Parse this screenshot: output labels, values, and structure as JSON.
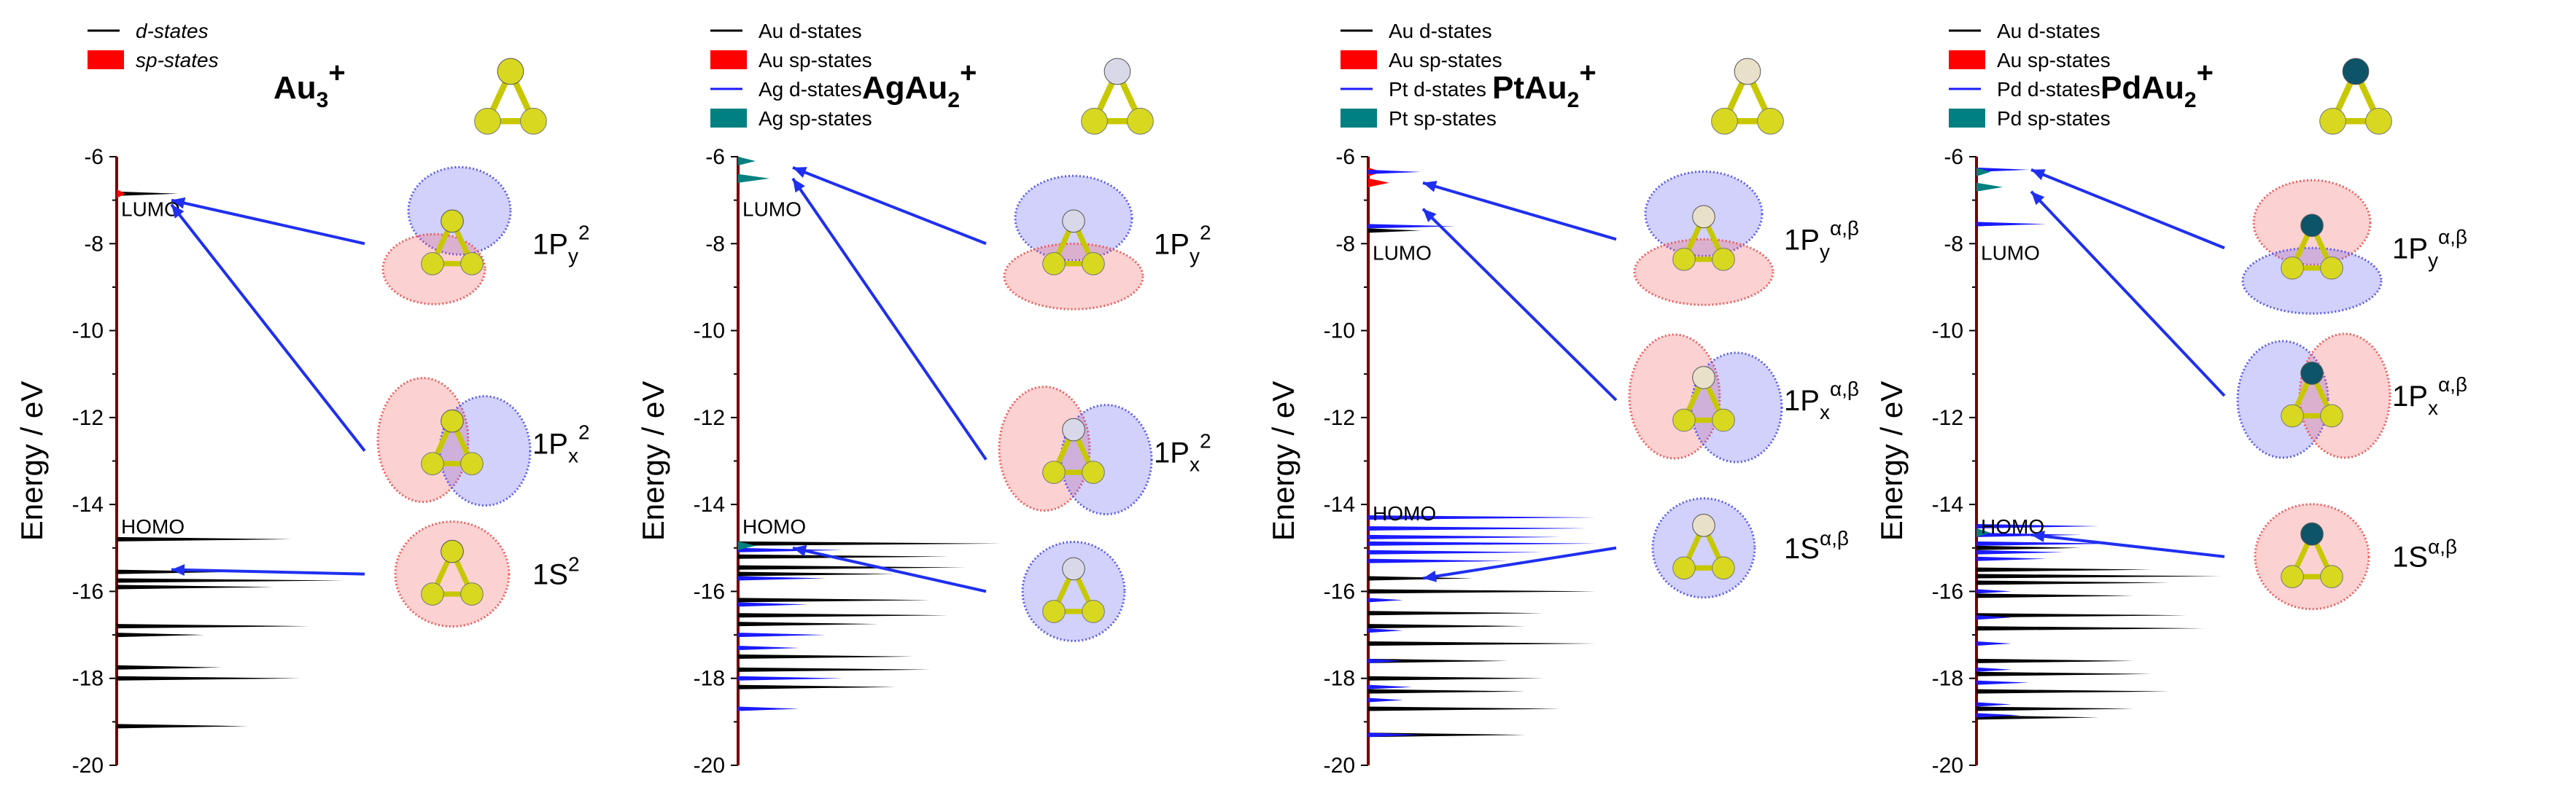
{
  "colors": {
    "d_states": "#000000",
    "au_sp": "#ff0000",
    "second_d": "#1a1aff",
    "second_sp": "#008080",
    "axis": "#7a0000",
    "arrow": "#1f2ff0",
    "lobe_red": "#f05a5a",
    "lobe_blue": "#5a5af0",
    "au_atom": "#d8d820",
    "ag_atom": "#d8d8e8",
    "pt_atom": "#e8e0c8",
    "pd_atom": "#0e5468"
  },
  "chart_data": [
    {
      "type": "bar",
      "panel": "Au3+",
      "title": "Au",
      "title_sub": "3",
      "title_sup": "+",
      "ylabel": "Energy / eV",
      "ylim": [
        -20,
        -6
      ],
      "yticks": [
        "-6",
        "-8",
        "-10",
        "-12",
        "-14",
        "-16",
        "-18",
        "-20"
      ],
      "legend": [
        {
          "label": "d-states",
          "style": "line",
          "color": "#000000",
          "italic": true
        },
        {
          "label": "sp-states",
          "style": "box",
          "color": "#ff0000",
          "italic": true
        }
      ],
      "level_labels": [
        {
          "text": "LUMO",
          "y": -7.0
        },
        {
          "text": "HOMO",
          "y": -14.3
        }
      ],
      "series": [
        {
          "name": "d-states",
          "color": "#000000",
          "peaks": [
            [
              -6.85,
              0.35
            ],
            [
              -14.8,
              1.0
            ],
            [
              -15.55,
              0.7
            ],
            [
              -15.75,
              1.3
            ],
            [
              -15.9,
              0.9
            ],
            [
              -16.8,
              1.1
            ],
            [
              -17.0,
              0.5
            ],
            [
              -17.75,
              0.6
            ],
            [
              -18.0,
              1.05
            ],
            [
              -19.1,
              0.75
            ]
          ]
        },
        {
          "name": "sp-states",
          "color": "#ff0000",
          "peaks": [
            [
              -6.85,
              0.05
            ]
          ]
        }
      ],
      "orbitals": [
        {
          "label": "1P",
          "sub": "y",
          "sup": "2",
          "y": -8.0,
          "lobes": "red-lower-blue-upper"
        },
        {
          "label": "1P",
          "sub": "x",
          "sup": "2",
          "y": -12.6,
          "lobes": "red-left-blue-right"
        },
        {
          "label": "1S",
          "sub": "",
          "sup": "2",
          "y": -15.6,
          "lobes": "red"
        }
      ],
      "arrows": [
        {
          "from_orbital": 0,
          "to_y": -7.0
        },
        {
          "from_orbital": 1,
          "to_y": -7.1
        },
        {
          "from_orbital": 2,
          "to_y": -15.5
        }
      ],
      "cluster_top_atom": "au"
    },
    {
      "type": "bar",
      "panel": "AgAu2+",
      "title": "AgAu",
      "title_sub": "2",
      "title_sup": "+",
      "ylabel": "Energy / eV",
      "ylim": [
        -20,
        -6
      ],
      "yticks": [
        "-6",
        "-8",
        "-10",
        "-12",
        "-14",
        "-16",
        "-18",
        "-20"
      ],
      "legend": [
        {
          "label": "Au d-states",
          "style": "line",
          "color": "#000000",
          "italic": false
        },
        {
          "label": "Au sp-states",
          "style": "box",
          "color": "#ff0000",
          "italic": false
        },
        {
          "label": "Ag d-states",
          "style": "line",
          "color": "#1a1aff",
          "italic": false
        },
        {
          "label": "Ag sp-states",
          "style": "box",
          "color": "#008080",
          "italic": false
        }
      ],
      "level_labels": [
        {
          "text": "LUMO",
          "y": -7.0
        },
        {
          "text": "HOMO",
          "y": -14.3
        }
      ],
      "series": [
        {
          "name": "Au d-states",
          "color": "#000000",
          "peaks": [
            [
              -14.9,
              1.5
            ],
            [
              -15.2,
              1.2
            ],
            [
              -15.45,
              1.3
            ],
            [
              -15.6,
              0.9
            ],
            [
              -16.2,
              1.1
            ],
            [
              -16.55,
              1.2
            ],
            [
              -16.75,
              0.8
            ],
            [
              -17.5,
              1.0
            ],
            [
              -17.8,
              1.1
            ],
            [
              -18.2,
              0.9
            ]
          ]
        },
        {
          "name": "Au sp-states",
          "color": "#ff0000",
          "peaks": []
        },
        {
          "name": "Ag d-states",
          "color": "#1a1aff",
          "peaks": [
            [
              -15.05,
              0.6
            ],
            [
              -15.7,
              0.5
            ],
            [
              -16.3,
              0.4
            ],
            [
              -17.0,
              0.5
            ],
            [
              -17.3,
              0.35
            ],
            [
              -18.0,
              0.6
            ],
            [
              -18.7,
              0.35
            ]
          ]
        },
        {
          "name": "Ag sp-states",
          "color": "#008080",
          "peaks": [
            [
              -6.1,
              0.1
            ],
            [
              -6.5,
              0.18
            ],
            [
              -14.95,
              0.1
            ]
          ]
        }
      ],
      "orbitals": [
        {
          "label": "1P",
          "sub": "y",
          "sup": "2",
          "y": -8.0,
          "lobes": "blue-upper-red-lower"
        },
        {
          "label": "1P",
          "sub": "x",
          "sup": "2",
          "y": -12.8,
          "lobes": "red-left-blue-right"
        },
        {
          "label": "",
          "sub": "",
          "sup": "",
          "y": -16.0,
          "lobes": "blue"
        }
      ],
      "arrows": [
        {
          "from_orbital": 0,
          "to_y": -6.25
        },
        {
          "from_orbital": 1,
          "to_y": -6.5
        },
        {
          "from_orbital": 2,
          "to_y": -15.0
        }
      ],
      "cluster_top_atom": "ag"
    },
    {
      "type": "bar",
      "panel": "PtAu2+",
      "title": "PtAu",
      "title_sub": "2",
      "title_sup": "+",
      "ylabel": "Energy / eV",
      "ylim": [
        -20,
        -6
      ],
      "yticks": [
        "-6",
        "-8",
        "-10",
        "-12",
        "-14",
        "-16",
        "-18",
        "-20"
      ],
      "legend": [
        {
          "label": "Au d-states",
          "style": "line",
          "color": "#000000",
          "italic": false
        },
        {
          "label": "Au sp-states",
          "style": "box",
          "color": "#ff0000",
          "italic": false
        },
        {
          "label": "Pt d-states",
          "style": "line",
          "color": "#1a1aff",
          "italic": false
        },
        {
          "label": "Pt sp-states",
          "style": "box",
          "color": "#008080",
          "italic": false
        }
      ],
      "level_labels": [
        {
          "text": "LUMO",
          "y": -8.0
        },
        {
          "text": "HOMO",
          "y": -14.0
        }
      ],
      "series": [
        {
          "name": "Au d-states",
          "color": "#000000",
          "peaks": [
            [
              -7.7,
              0.3
            ],
            [
              -15.7,
              0.6
            ],
            [
              -16.0,
              1.3
            ],
            [
              -16.5,
              1.0
            ],
            [
              -16.8,
              0.9
            ],
            [
              -17.2,
              1.3
            ],
            [
              -17.6,
              0.8
            ],
            [
              -18.0,
              1.0
            ],
            [
              -18.3,
              0.9
            ],
            [
              -18.7,
              1.1
            ],
            [
              -19.3,
              0.9
            ]
          ]
        },
        {
          "name": "Au sp-states",
          "color": "#ff0000",
          "peaks": [
            [
              -6.35,
              0.08
            ],
            [
              -6.6,
              0.12
            ]
          ]
        },
        {
          "name": "Pt d-states",
          "color": "#1a1aff",
          "peaks": [
            [
              -6.35,
              0.3
            ],
            [
              -7.6,
              0.5
            ],
            [
              -14.3,
              1.3
            ],
            [
              -14.55,
              1.25
            ],
            [
              -14.75,
              1.1
            ],
            [
              -14.9,
              1.3
            ],
            [
              -15.1,
              1.0
            ],
            [
              -15.3,
              0.8
            ],
            [
              -16.2,
              0.2
            ],
            [
              -16.9,
              0.2
            ],
            [
              -17.6,
              0.2
            ],
            [
              -18.2,
              0.25
            ],
            [
              -18.5,
              0.2
            ],
            [
              -19.3,
              0.3
            ]
          ]
        },
        {
          "name": "Pt sp-states",
          "color": "#008080",
          "peaks": []
        }
      ],
      "orbitals": [
        {
          "label": "1P",
          "sub": "y",
          "sup": "α,β",
          "y": -7.9,
          "lobes": "blue-upper-red-lower"
        },
        {
          "label": "1P",
          "sub": "x",
          "sup": "α,β",
          "y": -11.6,
          "lobes": "red-left-blue-right"
        },
        {
          "label": "1S",
          "sub": "",
          "sup": "α,β",
          "y": -15.0,
          "lobes": "blue"
        }
      ],
      "arrows": [
        {
          "from_orbital": 0,
          "to_y": -6.6
        },
        {
          "from_orbital": 1,
          "to_y": -7.2
        },
        {
          "from_orbital": 2,
          "to_y": -15.7
        }
      ],
      "cluster_top_atom": "pt"
    },
    {
      "type": "bar",
      "panel": "PdAu2+",
      "title": "PdAu",
      "title_sub": "2",
      "title_sup": "+",
      "ylabel": "Energy / eV",
      "ylim": [
        -20,
        -6
      ],
      "yticks": [
        "-6",
        "-8",
        "-10",
        "-12",
        "-14",
        "-16",
        "-18",
        "-20"
      ],
      "legend": [
        {
          "label": "Au d-states",
          "style": "line",
          "color": "#000000",
          "italic": false
        },
        {
          "label": "Au sp-states",
          "style": "box",
          "color": "#ff0000",
          "italic": false
        },
        {
          "label": "Pd d-states",
          "style": "line",
          "color": "#1a1aff",
          "italic": false
        },
        {
          "label": "Pd sp-states",
          "style": "box",
          "color": "#008080",
          "italic": false
        }
      ],
      "level_labels": [
        {
          "text": "LUMO",
          "y": -8.0
        },
        {
          "text": "HOMO",
          "y": -14.3
        }
      ],
      "series": [
        {
          "name": "Au d-states",
          "color": "#000000",
          "peaks": [
            [
              -7.55,
              0.3
            ],
            [
              -15.0,
              0.6
            ],
            [
              -15.5,
              1.0
            ],
            [
              -15.65,
              1.4
            ],
            [
              -15.8,
              1.1
            ],
            [
              -16.1,
              0.9
            ],
            [
              -16.55,
              1.2
            ],
            [
              -16.85,
              1.3
            ],
            [
              -17.6,
              0.9
            ],
            [
              -17.9,
              1.0
            ],
            [
              -18.3,
              1.1
            ],
            [
              -18.7,
              0.9
            ],
            [
              -18.9,
              0.7
            ]
          ]
        },
        {
          "name": "Au sp-states",
          "color": "#ff0000",
          "peaks": []
        },
        {
          "name": "Pd d-states",
          "color": "#1a1aff",
          "peaks": [
            [
              -6.3,
              0.3
            ],
            [
              -7.55,
              0.4
            ],
            [
              -14.5,
              0.7
            ],
            [
              -14.7,
              0.6
            ],
            [
              -14.9,
              0.8
            ],
            [
              -15.1,
              0.5
            ],
            [
              -15.25,
              0.4
            ],
            [
              -16.0,
              0.2
            ],
            [
              -16.6,
              0.2
            ],
            [
              -17.2,
              0.2
            ],
            [
              -17.8,
              0.2
            ],
            [
              -18.1,
              0.3
            ],
            [
              -18.6,
              0.2
            ],
            [
              -18.85,
              0.25
            ]
          ]
        },
        {
          "name": "Pd sp-states",
          "color": "#008080",
          "peaks": [
            [
              -6.35,
              0.08
            ],
            [
              -6.7,
              0.15
            ],
            [
              -14.65,
              0.08
            ]
          ]
        }
      ],
      "orbitals": [
        {
          "label": "1P",
          "sub": "y",
          "sup": "α,β",
          "y": -8.1,
          "lobes": "red-upper-blue-lower"
        },
        {
          "label": "1P",
          "sub": "x",
          "sup": "α,β",
          "y": -11.5,
          "lobes": "blue-left-red-right"
        },
        {
          "label": "1S",
          "sub": "",
          "sup": "α,β",
          "y": -15.2,
          "lobes": "red"
        }
      ],
      "arrows": [
        {
          "from_orbital": 0,
          "to_y": -6.3
        },
        {
          "from_orbital": 1,
          "to_y": -6.8
        },
        {
          "from_orbital": 2,
          "to_y": -14.7
        }
      ],
      "cluster_top_atom": "pd"
    }
  ]
}
